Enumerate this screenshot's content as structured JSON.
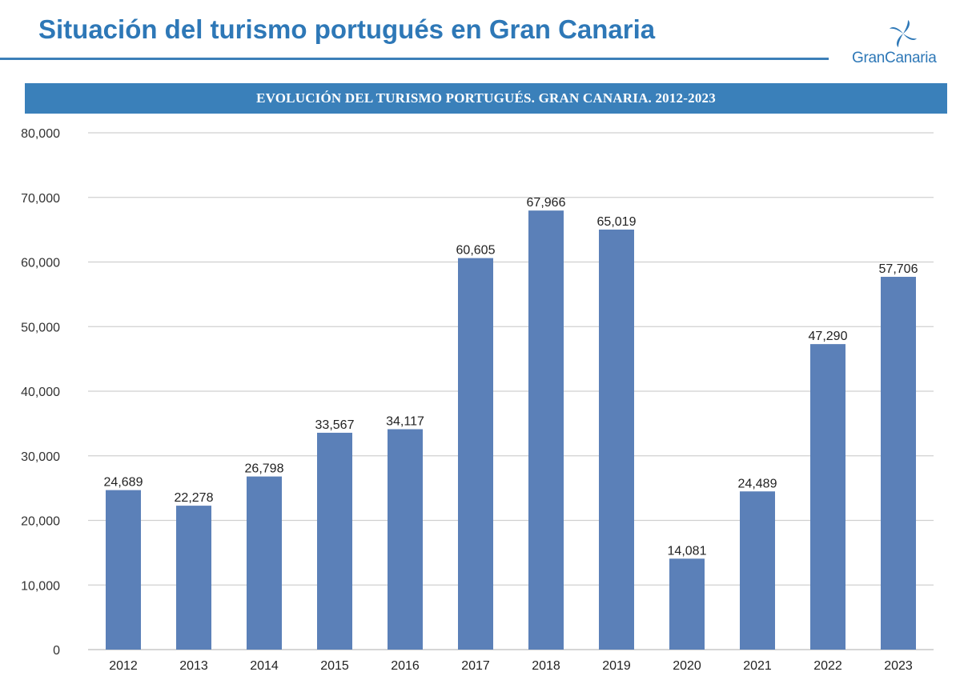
{
  "header": {
    "title": "Situación del turismo portugués en Gran Canaria",
    "logo_text": "GranCanaria"
  },
  "colors": {
    "brand_blue": "#2e78b7",
    "banner_blue": "#3a80ba",
    "bar_blue": "#5b80b8"
  },
  "chart_data": {
    "type": "bar",
    "title": "EVOLUCIÓN DEL TURISMO PORTUGUÉS. GRAN CANARIA. 2012-2023",
    "categories": [
      "2012",
      "2013",
      "2014",
      "2015",
      "2016",
      "2017",
      "2018",
      "2019",
      "2020",
      "2021",
      "2022",
      "2023"
    ],
    "values": [
      24689,
      22278,
      26798,
      33567,
      34117,
      60605,
      67966,
      65019,
      14081,
      24489,
      47290,
      57706
    ],
    "value_labels": [
      "24,689",
      "22,278",
      "26,798",
      "33,567",
      "34,117",
      "60,605",
      "67,966",
      "65,019",
      "14,081",
      "24,489",
      "47,290",
      "57,706"
    ],
    "yticks": [
      0,
      10000,
      20000,
      30000,
      40000,
      50000,
      60000,
      70000,
      80000
    ],
    "ytick_labels": [
      "0",
      "10,000",
      "20,000",
      "30,000",
      "40,000",
      "50,000",
      "60,000",
      "70,000",
      "80,000"
    ],
    "ylim": [
      0,
      80000
    ],
    "grid": true,
    "legend": "none"
  }
}
